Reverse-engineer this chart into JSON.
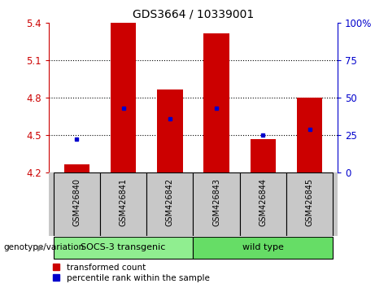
{
  "title": "GDS3664 / 10339001",
  "samples": [
    "GSM426840",
    "GSM426841",
    "GSM426842",
    "GSM426843",
    "GSM426844",
    "GSM426845"
  ],
  "bar_values": [
    4.27,
    5.4,
    4.87,
    5.32,
    4.47,
    4.8
  ],
  "percentile_values": [
    4.47,
    4.72,
    4.63,
    4.72,
    4.5,
    4.55
  ],
  "ylim": [
    4.2,
    5.4
  ],
  "yticks": [
    4.2,
    4.5,
    4.8,
    5.1,
    5.4
  ],
  "right_yticks": [
    0,
    25,
    50,
    75,
    100
  ],
  "right_ylim": [
    0,
    100
  ],
  "bar_color": "#cc0000",
  "dot_color": "#0000cc",
  "grid_color": "black",
  "left_tick_color": "#cc0000",
  "right_tick_color": "#0000cc",
  "groups": [
    {
      "label": "SOCS-3 transgenic",
      "start": 0,
      "end": 2,
      "color": "#90ee90"
    },
    {
      "label": "wild type",
      "start": 3,
      "end": 5,
      "color": "#66dd66"
    }
  ],
  "group_label": "genotype/variation",
  "legend_items": [
    {
      "label": "transformed count",
      "color": "#cc0000"
    },
    {
      "label": "percentile rank within the sample",
      "color": "#0000cc"
    }
  ],
  "bar_width": 0.55,
  "background_color": "#ffffff",
  "sample_bg_color": "#c8c8c8"
}
